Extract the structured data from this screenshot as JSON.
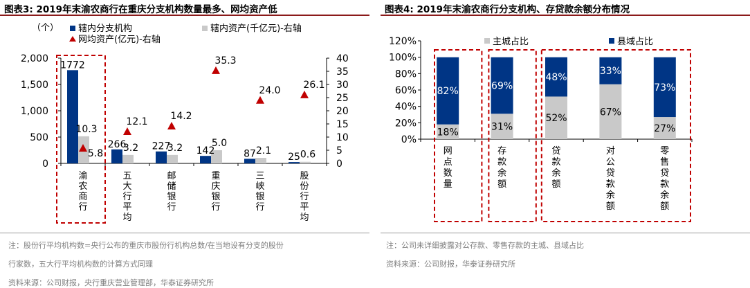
{
  "left": {
    "title": "图表3:   2019年末渝农商行在重庆分支机构数量最多、网均资产低",
    "notes": [
      "注：股份行平均机构数=央行公布的重庆市股份行机构总数/在当地设有分支的股份",
      "行家数，五大行平均机构数的计算方式同理",
      "资料来源：公司财报，央行重庆营业管理部，华泰证券研究所"
    ]
  },
  "right": {
    "title": "图表4:   2019年末渝农商行分支机构、存贷款余额分布情况",
    "notes": [
      "注：公司未详细披露对公存款、零售存款的主城、县域占比",
      "资料来源：公司财报，华泰证券研究所"
    ]
  },
  "colors": {
    "navy": "#003585",
    "gray": "#C9C9C9",
    "red": "#C00000",
    "rule": "#8B1A1A"
  },
  "chart_data": [
    {
      "type": "bar",
      "unit_label": "（个）",
      "categories": [
        "渝农商行",
        "五大行平均",
        "邮储银行",
        "重庆银行",
        "三峡银行",
        "股份行平均"
      ],
      "series": [
        {
          "name": "辖内分支机构",
          "axis": "left",
          "values": [
            1772,
            266,
            227,
            142,
            87,
            25
          ],
          "labels": [
            "1772",
            "266",
            "227",
            "142",
            "87",
            "25"
          ]
        },
        {
          "name": "辖内资产(千亿元)-右轴",
          "axis": "right",
          "values": [
            10.3,
            3.2,
            3.2,
            5.0,
            2.1,
            0.6
          ],
          "labels": [
            "10.3",
            "3.2",
            "3.2",
            "5.0",
            "2.1",
            "0.6"
          ]
        },
        {
          "name": "网均资产(亿元)-右轴",
          "axis": "right",
          "marker": "triangle",
          "values": [
            5.8,
            12.1,
            14.2,
            35.3,
            24.0,
            26.1
          ],
          "labels": [
            "5.8",
            "12.1",
            "14.2",
            "35.3",
            "24.0",
            "26.1"
          ]
        }
      ],
      "y_left": {
        "ylim": [
          0,
          2000
        ],
        "ticks": [
          "0",
          "500",
          "1,000",
          "1,500",
          "2,000"
        ],
        "tick_values": [
          0,
          500,
          1000,
          1500,
          2000
        ]
      },
      "y_right": {
        "ylim": [
          0,
          40
        ],
        "ticks": [
          "0",
          "5",
          "10",
          "15",
          "20",
          "25",
          "30",
          "35",
          "40"
        ],
        "tick_values": [
          0,
          5,
          10,
          15,
          20,
          25,
          30,
          35,
          40
        ]
      },
      "highlight": [
        "渝农商行"
      ]
    },
    {
      "type": "bar",
      "stacked": true,
      "percent": true,
      "categories": [
        "网点数量",
        "存款余额",
        "贷款余额",
        "对公贷款余额",
        "零售贷款余额"
      ],
      "series": [
        {
          "name": "主城占比",
          "values": [
            18,
            31,
            52,
            67,
            27
          ],
          "labels": [
            "18%",
            "31%",
            "52%",
            "67%",
            "27%"
          ]
        },
        {
          "name": "县域占比",
          "values": [
            82,
            69,
            48,
            33,
            73
          ],
          "labels": [
            "82%",
            "69%",
            "48%",
            "33%",
            "73%"
          ]
        }
      ],
      "ylim": [
        0,
        120
      ],
      "ticks": [
        "0%",
        "20%",
        "40%",
        "60%",
        "80%",
        "100%",
        "120%"
      ],
      "tick_values": [
        0,
        20,
        40,
        60,
        80,
        100,
        120
      ],
      "groups": [
        [
          "网点数量"
        ],
        [
          "存款余额"
        ],
        [
          "贷款余额",
          "对公贷款余额",
          "零售贷款余额"
        ]
      ]
    }
  ]
}
